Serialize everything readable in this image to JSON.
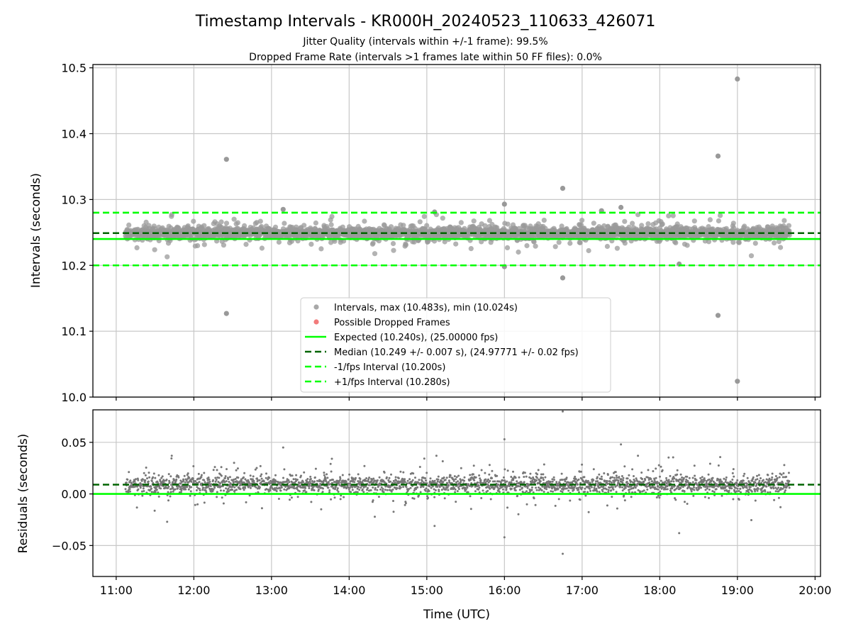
{
  "chart_data": {
    "type": "scatter",
    "title": "Timestamp Intervals - KR000H_20240523_110633_426071",
    "subtitle_lines": [
      "Jitter Quality (intervals within +/-1 frame): 99.5%",
      "Dropped Frame Rate (intervals >1 frames late within 50 FF files): 0.0%"
    ],
    "xlabel": "Time (UTC)",
    "x_ticks": [
      "11:00",
      "12:00",
      "13:00",
      "14:00",
      "15:00",
      "16:00",
      "17:00",
      "18:00",
      "19:00",
      "20:00"
    ],
    "xlim_hours": [
      10.7,
      20.07
    ],
    "data_range_hours": [
      11.12,
      19.67
    ],
    "grid": true,
    "panels": [
      {
        "name": "intervals",
        "ylabel": "Intervals (seconds)",
        "ylim": [
          10.0,
          10.505
        ],
        "y_ticks": [
          "10.0",
          "10.1",
          "10.2",
          "10.3",
          "10.4",
          "10.5"
        ],
        "y_tick_values": [
          10.0,
          10.1,
          10.2,
          10.3,
          10.4,
          10.5
        ],
        "lines": [
          {
            "label": "Expected (10.240s), (25.00000 fps)",
            "y": 10.24,
            "color": "#00ff00",
            "style": "solid"
          },
          {
            "label": "Median (10.249 +/- 0.007 s), (24.97771 +/- 0.02 fps)",
            "y": 10.249,
            "color": "#006400",
            "style": "dashed"
          },
          {
            "label": "-1/fps Interval (10.200s)",
            "y": 10.2,
            "color": "#00ff00",
            "style": "dashed"
          },
          {
            "label": "+1/fps Interval (10.280s)",
            "y": 10.28,
            "color": "#00ff00",
            "style": "dashed"
          }
        ],
        "outliers": [
          [
            12.42,
            10.361
          ],
          [
            12.42,
            10.127
          ],
          [
            16.75,
            10.317
          ],
          [
            16.75,
            10.181
          ],
          [
            17.5,
            10.288
          ],
          [
            18.75,
            10.366
          ],
          [
            18.75,
            10.124
          ],
          [
            19.0,
            10.483
          ],
          [
            19.0,
            10.024
          ],
          [
            16.0,
            10.293
          ],
          [
            16.0,
            10.198
          ],
          [
            13.15,
            10.285
          ],
          [
            18.25,
            10.202
          ],
          [
            17.25,
            10.283
          ],
          [
            15.1,
            10.281
          ]
        ],
        "legend": {
          "placement": "lower-center",
          "entries": [
            {
              "label": "Intervals, max (10.483s), min (10.024s)",
              "marker": "circle",
              "color": "#999999"
            },
            {
              "label": "Possible Dropped Frames",
              "marker": "circle",
              "color": "#f06464"
            },
            {
              "label": "Expected (10.240s), (25.00000 fps)",
              "marker": "line",
              "color": "#00ff00",
              "style": "solid"
            },
            {
              "label": "Median (10.249 +/- 0.007 s), (24.97771 +/- 0.02 fps)",
              "marker": "line",
              "color": "#006400",
              "style": "dashed"
            },
            {
              "label": "-1/fps Interval (10.200s)",
              "marker": "line",
              "color": "#00ff00",
              "style": "dashed"
            },
            {
              "label": "+1/fps Interval (10.280s)",
              "marker": "line",
              "color": "#00ff00",
              "style": "dashed"
            }
          ]
        }
      },
      {
        "name": "residuals",
        "ylabel": "Residuals (seconds)",
        "ylim": [
          -0.08,
          0.0815
        ],
        "y_ticks": [
          "−0.05",
          "0.00",
          "0.05"
        ],
        "y_tick_values": [
          -0.05,
          0.0,
          0.05
        ],
        "lines": [
          {
            "y": 0.0,
            "color": "#00ff00",
            "style": "solid"
          },
          {
            "y": 0.009,
            "color": "#006400",
            "style": "dashed"
          }
        ],
        "outliers": [
          [
            16.75,
            0.08
          ],
          [
            16.75,
            -0.058
          ],
          [
            16.0,
            0.053
          ],
          [
            16.0,
            -0.042
          ],
          [
            15.1,
            -0.031
          ],
          [
            18.25,
            -0.038
          ],
          [
            17.5,
            0.048
          ],
          [
            13.15,
            0.045
          ]
        ]
      }
    ],
    "colors": {
      "interval_points": "#999999",
      "residual_points": "#777777",
      "expected": "#00ff00",
      "median": "#006400",
      "grid": "#c8c8c8"
    }
  }
}
